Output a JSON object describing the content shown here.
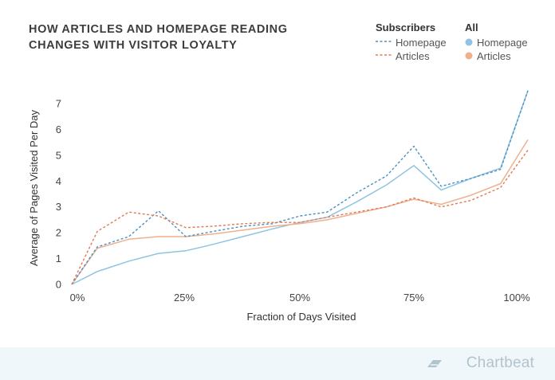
{
  "title_line1": "HOW ARTICLES AND HOMEPAGE READING",
  "title_line2": "CHANGES WITH VISITOR LOYALTY",
  "legend": {
    "group1": "Subscribers",
    "group2": "All",
    "homepage": "Homepage",
    "articles": "Articles"
  },
  "brand": "Chartbeat",
  "colors": {
    "homepage": "#8ec4e2",
    "homepage_dashed": "#4a8fc4",
    "articles": "#efb08e",
    "articles_dashed": "#e07a55"
  },
  "chart_data": {
    "type": "line",
    "xlabel": "Fraction of Days Visited",
    "ylabel": "Average of Pages Visited Per Day",
    "xlim": [
      0,
      1
    ],
    "ylim": [
      0,
      7
    ],
    "x_ticks": [
      "0%",
      "25%",
      "50%",
      "75%",
      "100%"
    ],
    "y_ticks": [
      "0",
      "1",
      "2",
      "3",
      "4",
      "5",
      "6",
      "7"
    ],
    "x": [
      0,
      0.056,
      0.125,
      0.19,
      0.25,
      0.31,
      0.375,
      0.44,
      0.5,
      0.56,
      0.625,
      0.69,
      0.75,
      0.81,
      0.875,
      0.94,
      1.0
    ],
    "series": [
      {
        "name": "Homepage",
        "group": "All",
        "style": "solid",
        "color": "#8ec4e2",
        "values": [
          0,
          0.5,
          0.9,
          1.2,
          1.3,
          1.55,
          1.85,
          2.15,
          2.4,
          2.6,
          3.2,
          3.85,
          4.6,
          3.65,
          4.1,
          4.5,
          7.5
        ]
      },
      {
        "name": "Articles",
        "group": "All",
        "style": "solid",
        "color": "#efb08e",
        "values": [
          0,
          1.4,
          1.75,
          1.85,
          1.85,
          1.95,
          2.1,
          2.25,
          2.35,
          2.5,
          2.75,
          3.0,
          3.3,
          3.1,
          3.45,
          3.9,
          5.6
        ]
      },
      {
        "name": "Homepage",
        "group": "Subscribers",
        "style": "dashed",
        "color": "#4a8fc4",
        "values": [
          0,
          1.45,
          1.85,
          2.85,
          1.85,
          2.05,
          2.25,
          2.35,
          2.65,
          2.8,
          3.55,
          4.2,
          5.35,
          3.8,
          4.1,
          4.45,
          7.5
        ]
      },
      {
        "name": "Articles",
        "group": "Subscribers",
        "style": "dashed",
        "color": "#e07a55",
        "values": [
          0,
          2.05,
          2.8,
          2.65,
          2.2,
          2.25,
          2.35,
          2.4,
          2.4,
          2.6,
          2.8,
          3.0,
          3.35,
          3.0,
          3.25,
          3.75,
          5.2
        ]
      }
    ]
  }
}
